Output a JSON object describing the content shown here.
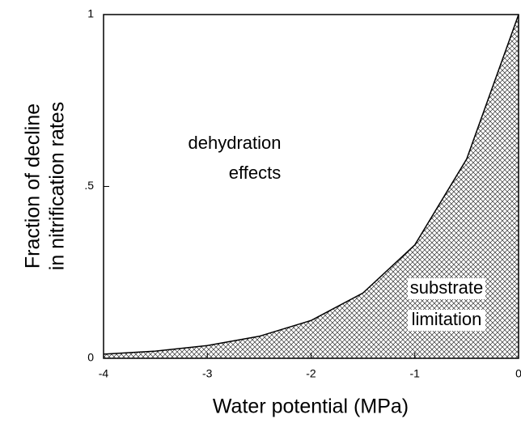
{
  "chart_data": {
    "type": "area",
    "xlabel": "Water potential (MPa)",
    "ylabel": [
      "Fraction of decline",
      "in nitrification rates"
    ],
    "x": [
      -4,
      -3.5,
      -3,
      -2.5,
      -2,
      -1.5,
      -1,
      -0.5,
      0
    ],
    "values": [
      0.012,
      0.021,
      0.037,
      0.064,
      0.11,
      0.19,
      0.33,
      0.58,
      1
    ],
    "color": "#000000",
    "xlim": [
      -4,
      0
    ],
    "xticks": [
      -4,
      -3,
      -2,
      -1,
      0
    ],
    "ylim": [
      0,
      1
    ],
    "yticks": [
      0,
      {
        "value": 0.5,
        "label": ".5"
      },
      1
    ],
    "annotations": [
      [
        "dehydration",
        "effects"
      ],
      [
        "substrate",
        "limitation"
      ]
    ]
  }
}
